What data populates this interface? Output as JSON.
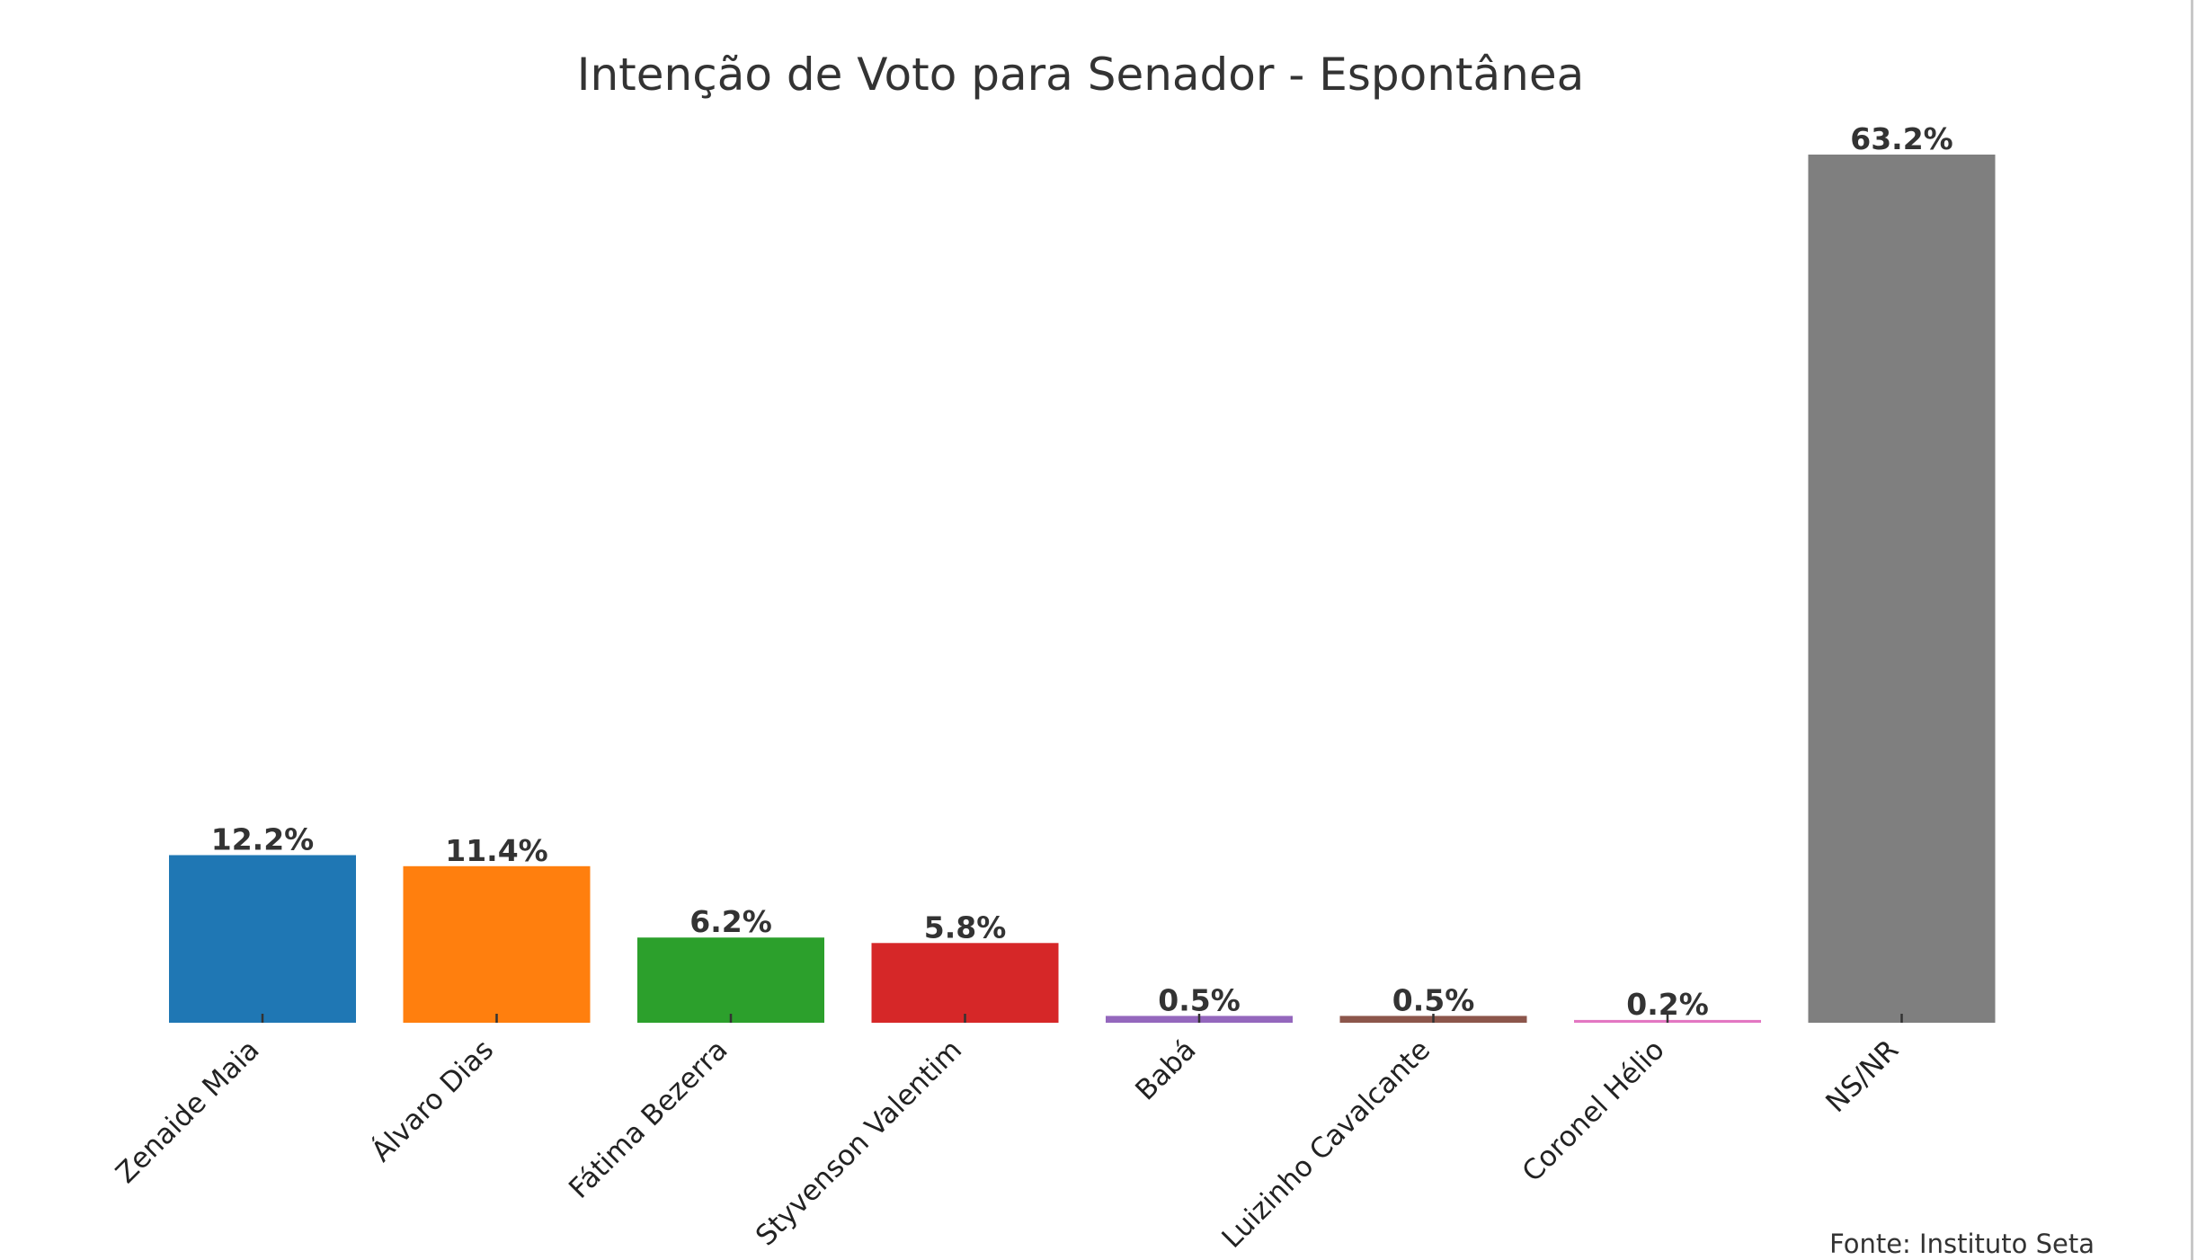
{
  "chart_data": {
    "type": "bar",
    "title": "Intenção de Voto para Senador - Espontânea",
    "xlabel": "",
    "ylabel": "",
    "categories": [
      "Zenaide Maia",
      "Álvaro Dias",
      "Fátima Bezerra",
      "Styvenson Valentim",
      "Babá",
      "Luizinho Cavalcante",
      "Coronel Hélio",
      "NS/NR"
    ],
    "values": [
      12.2,
      11.4,
      6.2,
      5.8,
      0.5,
      0.5,
      0.2,
      63.2
    ],
    "value_labels": [
      "12.2%",
      "11.4%",
      "6.2%",
      "5.8%",
      "0.5%",
      "0.5%",
      "0.2%",
      "63.2%"
    ],
    "colors": [
      "#1f77b4",
      "#ff7f0e",
      "#2ca02c",
      "#d62728",
      "#9467bd",
      "#8c564b",
      "#e377c2",
      "#7f7f7f"
    ],
    "ylim": [
      0,
      63.2
    ],
    "grid": false,
    "legend": "none",
    "source": "Fonte: Instituto Seta"
  }
}
